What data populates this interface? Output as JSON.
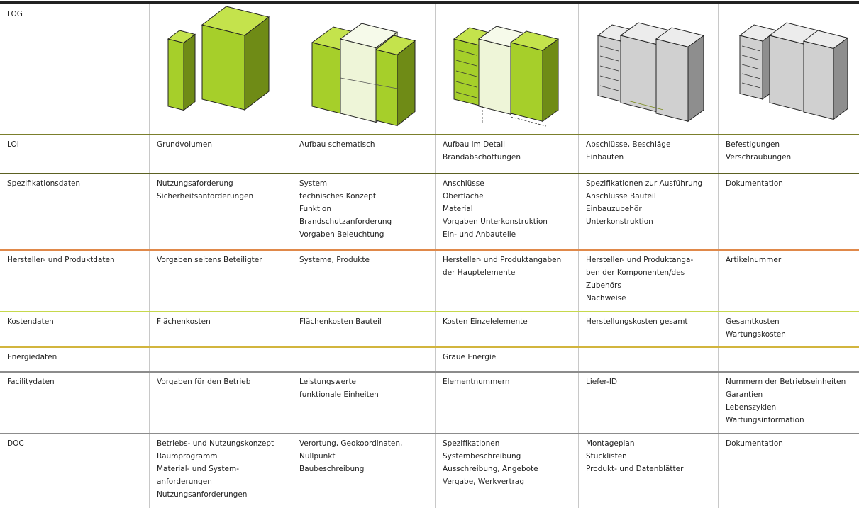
{
  "table": {
    "rows": [
      {
        "label": "LOG",
        "cells": [
          [],
          [],
          [],
          [],
          []
        ]
      },
      {
        "label": "LOI",
        "cells": [
          [
            "Grundvolumen"
          ],
          [
            "Aufbau schematisch"
          ],
          [
            "Aufbau im Detail",
            "Brandabschottungen"
          ],
          [
            "Abschlüsse, Beschläge",
            "Einbauten"
          ],
          [
            "Befestigungen",
            "Verschraubungen"
          ]
        ]
      },
      {
        "label": "Spezifikationsdaten",
        "cells": [
          [
            "Nutzungsaforderung",
            "Sicherheitsanforderungen"
          ],
          [
            "System",
            "technisches Konzept",
            "Funktion",
            "Brandschutzanforderung",
            "Vorgaben Beleuchtung"
          ],
          [
            "Anschlüsse",
            "Oberfläche",
            "Material",
            "Vorgaben Unterkonstruktion",
            "Ein- und Anbauteile"
          ],
          [
            "Spezifikationen zur Ausführung",
            "Anschlüsse Bauteil",
            "Einbauzubehör",
            "Unterkonstruktion"
          ],
          [
            "Dokumentation"
          ]
        ]
      },
      {
        "label": "Hersteller- und Produktdaten",
        "cells": [
          [
            "Vorgaben seitens Beteiligter"
          ],
          [
            "Systeme, Produkte"
          ],
          [
            "Hersteller- und Produktangaben",
            "der Hauptelemente"
          ],
          [
            "Hersteller- und Produktanga-",
            "ben der Komponenten/des",
            "Zubehörs",
            "Nachweise"
          ],
          [
            "Artikelnummer"
          ]
        ]
      },
      {
        "label": "Kostendaten",
        "cells": [
          [
            "Flächenkosten"
          ],
          [
            "Flächenkosten Bauteil"
          ],
          [
            "Kosten Einzelelemente"
          ],
          [
            "Herstellungskosten gesamt"
          ],
          [
            "Gesamtkosten",
            "Wartungskosten"
          ]
        ]
      },
      {
        "label": "Energiedaten",
        "cells": [
          [],
          [],
          [
            "Graue Energie"
          ],
          [],
          []
        ]
      },
      {
        "label": "Facilitydaten",
        "cells": [
          [
            "Vorgaben für den Betrieb"
          ],
          [
            "Leistungswerte",
            "funktionale Einheiten"
          ],
          [
            "Elementnummern"
          ],
          [
            "Liefer-ID"
          ],
          [
            "Nummern der Betriebseinheiten",
            "Garantien",
            "Lebenszyklen",
            "Wartungsinformation"
          ]
        ]
      },
      {
        "label": "DOC",
        "cells": [
          [
            "Betriebs- und Nutzungskonzept",
            "Raumprogramm",
            "Material- und System-",
            "anforderungen",
            "Nutzungsanforderungen"
          ],
          [
            "Verortung, Geokoordinaten,",
            "Nullpunkt",
            "Baubeschreibung"
          ],
          [
            "Spezifikationen",
            "Systembeschreibung",
            "Ausschreibung, Angebote",
            "Vergabe, Werkvertrag"
          ],
          [
            "Montageplan",
            "Stücklisten",
            "Produkt- und Datenblätter"
          ],
          [
            "Dokumentation"
          ]
        ]
      }
    ]
  }
}
